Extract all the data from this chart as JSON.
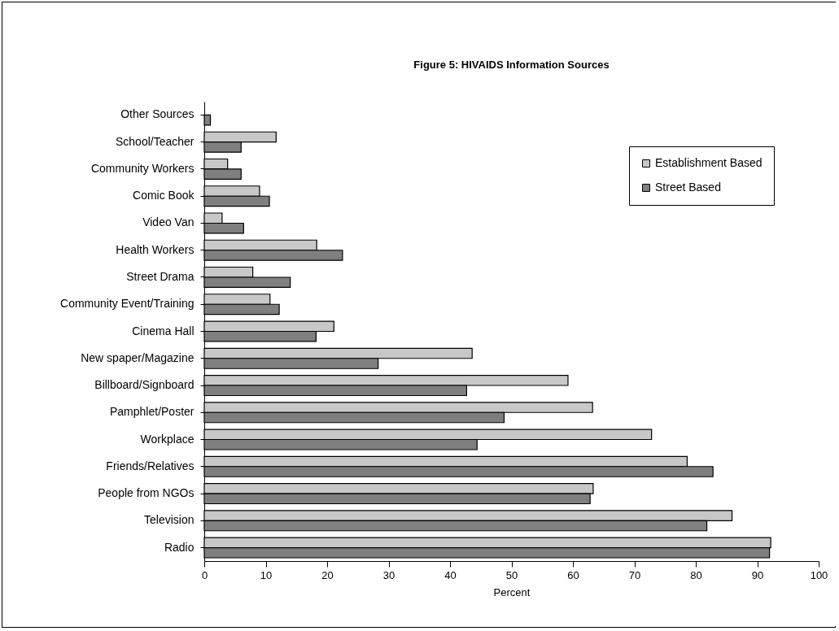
{
  "chart_data": {
    "type": "bar",
    "orientation": "horizontal",
    "title": "Figure 5: HIVAIDS Information Sources",
    "xlabel": "Percent",
    "categories": [
      "Other Sources",
      "School/Teacher",
      "Community Workers",
      "Comic Book",
      "Video Van",
      "Health Workers",
      "Street Drama",
      "Community Event/Training",
      "Cinema Hall",
      "New spaper/Magazine",
      "Billboard/Signboard",
      "Pamphlet/Poster",
      "Workplace",
      "Friends/Relatives",
      "People from NGOs",
      "Television",
      "Radio"
    ],
    "series": [
      {
        "name": "Establishment Based",
        "color": "#c8c8c8",
        "values": [
          null,
          11.7,
          3.8,
          9,
          2.9,
          18.3,
          7.9,
          10.7,
          21.1,
          43.6,
          59.2,
          63.2,
          72.8,
          78.6,
          63.3,
          85.9,
          92.2
        ]
      },
      {
        "name": "Street Based",
        "color": "#7f7f7f",
        "values": [
          1,
          6,
          6,
          10.6,
          6.4,
          22.5,
          14,
          12.2,
          18.2,
          28.3,
          42.7,
          48.8,
          44.4,
          82.8,
          62.8,
          81.8,
          92
        ]
      }
    ],
    "xlim": [
      0,
      100
    ],
    "xticks": [
      0,
      10,
      20,
      30,
      40,
      50,
      60,
      70,
      80,
      90,
      100
    ],
    "grid": false,
    "legend": "top right"
  }
}
